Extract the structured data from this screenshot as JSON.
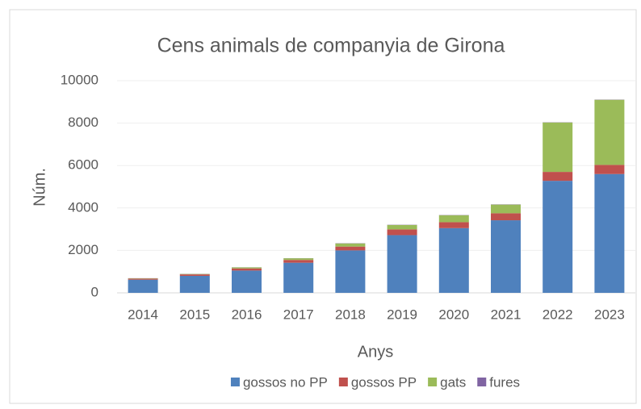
{
  "chart_data": {
    "type": "bar",
    "stacked": true,
    "title": "Cens animals de companyia de Girona",
    "x_label": "Anys",
    "y_label": "Núm.",
    "categories": [
      "2014",
      "2015",
      "2016",
      "2017",
      "2018",
      "2019",
      "2020",
      "2021",
      "2022",
      "2023"
    ],
    "series": [
      {
        "name": "gossos no PP",
        "color": "#4f81bd",
        "values": [
          620,
          800,
          1050,
          1420,
          2000,
          2720,
          3050,
          3420,
          5280,
          5600
        ]
      },
      {
        "name": "gossos PP",
        "color": "#c0504d",
        "values": [
          50,
          70,
          100,
          130,
          180,
          270,
          280,
          330,
          420,
          430
        ]
      },
      {
        "name": "gats",
        "color": "#9bbb59",
        "values": [
          15,
          20,
          50,
          80,
          150,
          210,
          330,
          410,
          2330,
          3070
        ]
      },
      {
        "name": "fures",
        "color": "#8064a2",
        "values": [
          5,
          5,
          5,
          5,
          10,
          10,
          10,
          10,
          10,
          10
        ]
      }
    ],
    "ylim": [
      0,
      10000
    ],
    "yticks": [
      0,
      2000,
      4000,
      6000,
      8000,
      10000
    ],
    "grid": true,
    "legend": "bottom"
  }
}
